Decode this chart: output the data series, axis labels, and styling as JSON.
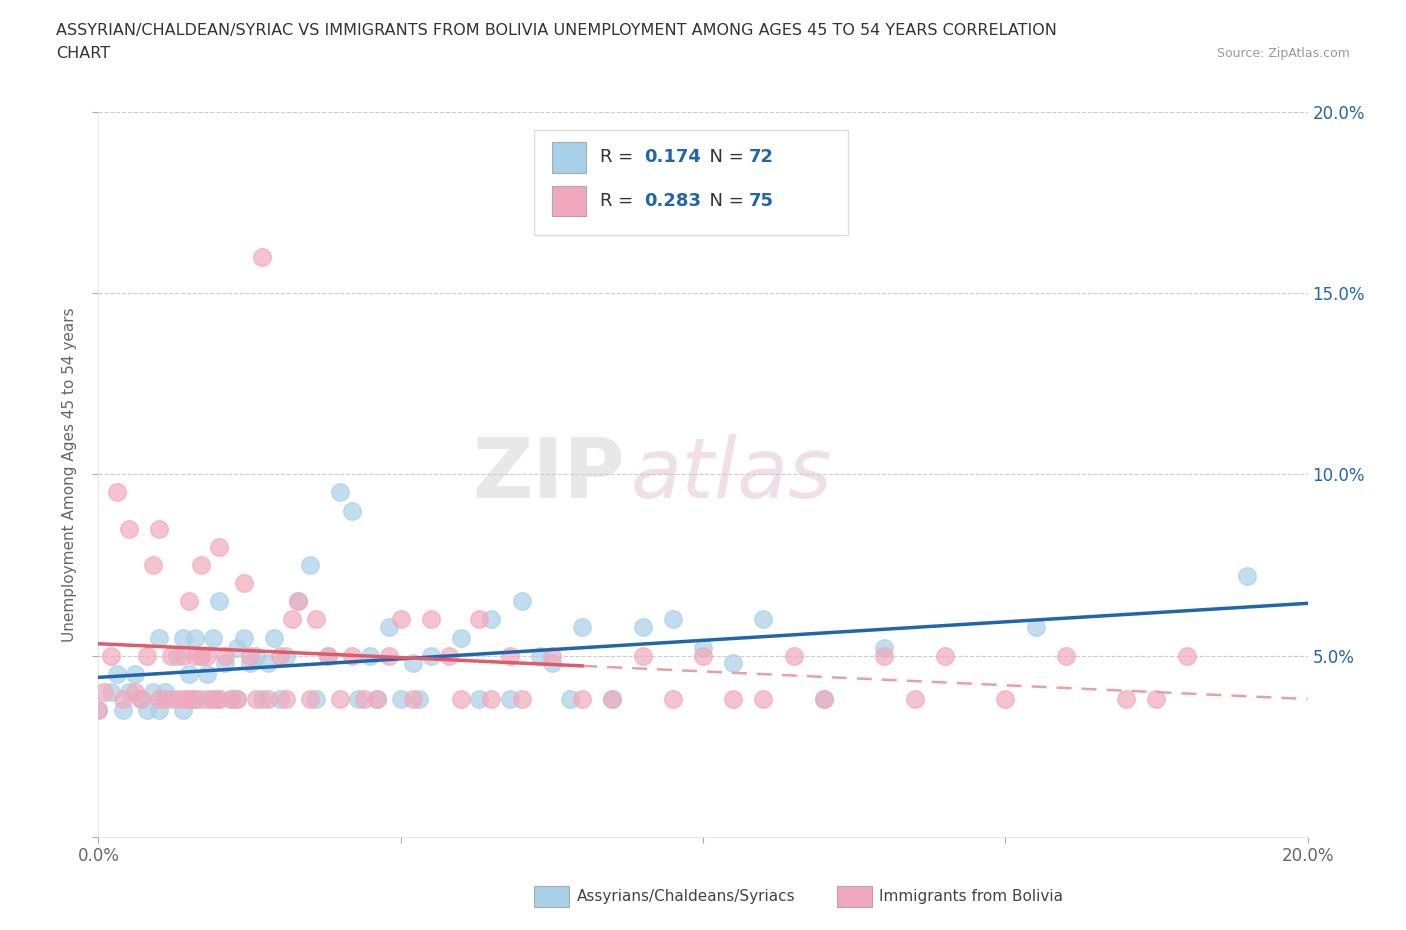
{
  "title_line1": "ASSYRIAN/CHALDEAN/SYRIAC VS IMMIGRANTS FROM BOLIVIA UNEMPLOYMENT AMONG AGES 45 TO 54 YEARS CORRELATION",
  "title_line2": "CHART",
  "source": "Source: ZipAtlas.com",
  "ylabel": "Unemployment Among Ages 45 to 54 years",
  "xlim": [
    0.0,
    0.2
  ],
  "ylim": [
    0.0,
    0.2
  ],
  "xticks": [
    0.0,
    0.05,
    0.1,
    0.15,
    0.2
  ],
  "yticks": [
    0.0,
    0.05,
    0.1,
    0.15,
    0.2
  ],
  "xtick_labels_bottom": [
    "0.0%",
    "",
    "",
    "",
    "20.0%"
  ],
  "xtick_labels_top": [],
  "ytick_labels_left": [
    "",
    "",
    "",
    "",
    ""
  ],
  "ytick_labels_right": [
    "",
    "5.0%",
    "10.0%",
    "15.0%",
    "20.0%"
  ],
  "blue_color": "#A8D0E8",
  "pink_color": "#F2A8BC",
  "blue_line_color": "#2166AC",
  "pink_line_color": "#E05A6A",
  "dash_line_color": "#E8A0A8",
  "R_blue": 0.174,
  "N_blue": 72,
  "R_pink": 0.283,
  "N_pink": 75,
  "legend_label_blue": "Assyrians/Chaldeans/Syriacs",
  "legend_label_pink": "Immigrants from Bolivia",
  "watermark_zip": "ZIP",
  "watermark_atlas": "atlas",
  "blue_scatter_x": [
    0.0,
    0.002,
    0.003,
    0.004,
    0.005,
    0.006,
    0.007,
    0.008,
    0.009,
    0.01,
    0.01,
    0.011,
    0.012,
    0.013,
    0.014,
    0.014,
    0.015,
    0.015,
    0.016,
    0.016,
    0.017,
    0.017,
    0.018,
    0.019,
    0.019,
    0.02,
    0.02,
    0.021,
    0.022,
    0.023,
    0.023,
    0.024,
    0.025,
    0.026,
    0.027,
    0.028,
    0.029,
    0.03,
    0.031,
    0.033,
    0.035,
    0.036,
    0.038,
    0.04,
    0.042,
    0.043,
    0.045,
    0.046,
    0.048,
    0.05,
    0.052,
    0.053,
    0.055,
    0.06,
    0.063,
    0.065,
    0.068,
    0.07,
    0.073,
    0.075,
    0.078,
    0.08,
    0.085,
    0.09,
    0.095,
    0.1,
    0.105,
    0.11,
    0.12,
    0.13,
    0.155,
    0.19
  ],
  "blue_scatter_y": [
    0.035,
    0.04,
    0.045,
    0.035,
    0.04,
    0.045,
    0.038,
    0.035,
    0.04,
    0.035,
    0.055,
    0.04,
    0.038,
    0.05,
    0.035,
    0.055,
    0.045,
    0.038,
    0.038,
    0.055,
    0.05,
    0.038,
    0.045,
    0.055,
    0.038,
    0.065,
    0.038,
    0.048,
    0.038,
    0.052,
    0.038,
    0.055,
    0.048,
    0.05,
    0.038,
    0.048,
    0.055,
    0.038,
    0.05,
    0.065,
    0.075,
    0.038,
    0.05,
    0.095,
    0.09,
    0.038,
    0.05,
    0.038,
    0.058,
    0.038,
    0.048,
    0.038,
    0.05,
    0.055,
    0.038,
    0.06,
    0.038,
    0.065,
    0.05,
    0.048,
    0.038,
    0.058,
    0.038,
    0.058,
    0.06,
    0.052,
    0.048,
    0.06,
    0.038,
    0.052,
    0.058,
    0.072
  ],
  "pink_scatter_x": [
    0.0,
    0.001,
    0.002,
    0.003,
    0.004,
    0.005,
    0.006,
    0.007,
    0.008,
    0.009,
    0.01,
    0.01,
    0.011,
    0.012,
    0.013,
    0.014,
    0.014,
    0.015,
    0.015,
    0.016,
    0.016,
    0.017,
    0.017,
    0.018,
    0.018,
    0.019,
    0.02,
    0.02,
    0.021,
    0.022,
    0.023,
    0.024,
    0.025,
    0.026,
    0.027,
    0.028,
    0.03,
    0.031,
    0.032,
    0.033,
    0.035,
    0.036,
    0.038,
    0.04,
    0.042,
    0.044,
    0.046,
    0.048,
    0.05,
    0.052,
    0.055,
    0.058,
    0.06,
    0.063,
    0.065,
    0.068,
    0.07,
    0.075,
    0.08,
    0.085,
    0.09,
    0.095,
    0.1,
    0.105,
    0.11,
    0.115,
    0.12,
    0.13,
    0.135,
    0.14,
    0.15,
    0.16,
    0.17,
    0.175,
    0.18
  ],
  "pink_scatter_y": [
    0.035,
    0.04,
    0.05,
    0.095,
    0.038,
    0.085,
    0.04,
    0.038,
    0.05,
    0.075,
    0.038,
    0.085,
    0.038,
    0.05,
    0.038,
    0.05,
    0.038,
    0.038,
    0.065,
    0.05,
    0.038,
    0.05,
    0.075,
    0.038,
    0.05,
    0.038,
    0.038,
    0.08,
    0.05,
    0.038,
    0.038,
    0.07,
    0.05,
    0.038,
    0.16,
    0.038,
    0.05,
    0.038,
    0.06,
    0.065,
    0.038,
    0.06,
    0.05,
    0.038,
    0.05,
    0.038,
    0.038,
    0.05,
    0.06,
    0.038,
    0.06,
    0.05,
    0.038,
    0.06,
    0.038,
    0.05,
    0.038,
    0.05,
    0.038,
    0.038,
    0.05,
    0.038,
    0.05,
    0.038,
    0.038,
    0.05,
    0.038,
    0.05,
    0.038,
    0.05,
    0.038,
    0.05,
    0.038,
    0.038,
    0.05
  ]
}
